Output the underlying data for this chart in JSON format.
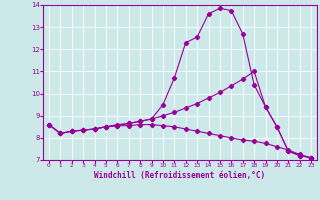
{
  "xlabel": "Windchill (Refroidissement éolien,°C)",
  "line_color": "#990099",
  "bg_color": "#cce8e8",
  "xlim": [
    -0.5,
    23.5
  ],
  "ylim": [
    7,
    14
  ],
  "xticks": [
    0,
    1,
    2,
    3,
    4,
    5,
    6,
    7,
    8,
    9,
    10,
    11,
    12,
    13,
    14,
    15,
    16,
    17,
    18,
    19,
    20,
    21,
    22,
    23
  ],
  "yticks": [
    7,
    8,
    9,
    10,
    11,
    12,
    13,
    14
  ],
  "line1_x": [
    0,
    1,
    2,
    3,
    4,
    5,
    6,
    7,
    8,
    9,
    10,
    11,
    12,
    13,
    14,
    15,
    16,
    17,
    18,
    19,
    20,
    21,
    22,
    23
  ],
  "line1_y": [
    8.6,
    8.2,
    8.3,
    8.35,
    8.4,
    8.5,
    8.6,
    8.65,
    8.75,
    8.85,
    9.5,
    10.7,
    12.3,
    12.55,
    13.6,
    13.85,
    13.75,
    12.7,
    10.4,
    9.4,
    8.5,
    7.4,
    7.2,
    7.1
  ],
  "line2_x": [
    0,
    1,
    2,
    3,
    4,
    5,
    6,
    7,
    8,
    9,
    10,
    11,
    12,
    13,
    14,
    15,
    16,
    17,
    18,
    19,
    20,
    21,
    22,
    23
  ],
  "line2_y": [
    8.6,
    8.2,
    8.3,
    8.35,
    8.4,
    8.5,
    8.55,
    8.65,
    8.75,
    8.85,
    9.0,
    9.15,
    9.35,
    9.55,
    9.8,
    10.05,
    10.35,
    10.65,
    11.0,
    9.4,
    8.5,
    7.4,
    7.2,
    7.1
  ],
  "line3_x": [
    0,
    1,
    2,
    3,
    4,
    5,
    6,
    7,
    8,
    9,
    10,
    11,
    12,
    13,
    14,
    15,
    16,
    17,
    18,
    19,
    20,
    21,
    22,
    23
  ],
  "line3_y": [
    8.6,
    8.2,
    8.3,
    8.35,
    8.4,
    8.5,
    8.55,
    8.55,
    8.6,
    8.6,
    8.55,
    8.5,
    8.4,
    8.3,
    8.2,
    8.1,
    8.0,
    7.9,
    7.85,
    7.75,
    7.6,
    7.45,
    7.25,
    7.1
  ]
}
